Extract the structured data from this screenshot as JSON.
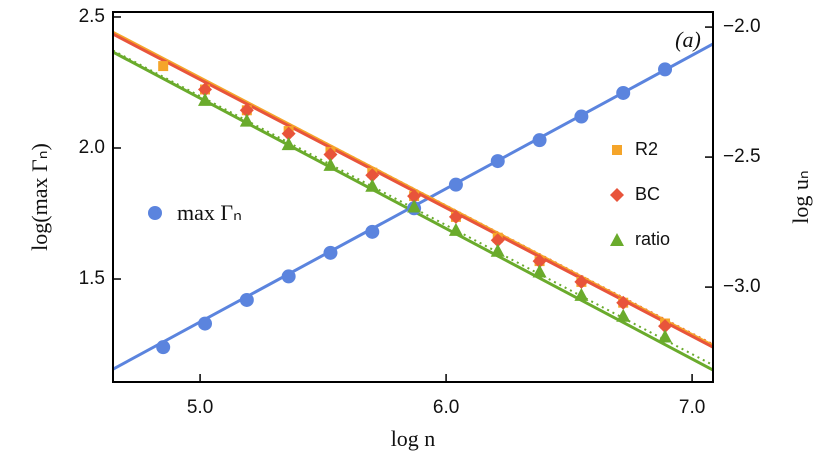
{
  "chart_data": {
    "type": "scatter",
    "annotation": "(a)",
    "xlabel": "log n",
    "ylabel": "log(max Γₙ)",
    "y2label": "log uₙ",
    "xlim": [
      4.646,
      7.085
    ],
    "ylim": [
      1.107,
      2.519
    ],
    "y2lim": [
      -3.365,
      -1.942
    ],
    "xticks": [
      {
        "value": 5,
        "label": "5.0"
      },
      {
        "value": 6,
        "label": "6.0"
      },
      {
        "value": 7,
        "label": "7.0"
      }
    ],
    "yticks": [
      1.5,
      {
        "value": 2,
        "label": "2.0"
      },
      2.5
    ],
    "y2ticks": [
      {
        "value": -3,
        "label": "−3.0"
      },
      {
        "value": -2.5,
        "label": "−2.5"
      },
      {
        "value": -2,
        "label": "−2.0"
      }
    ],
    "series": [
      {
        "name": "max Γₙ",
        "color": "#5b84de",
        "marker": "circle",
        "axis": "y",
        "x": [
          4.85,
          5.02,
          5.19,
          5.36,
          5.53,
          5.7,
          5.87,
          6.04,
          6.21,
          6.38,
          6.55,
          6.72,
          6.89
        ],
        "values": [
          1.24,
          1.33,
          1.42,
          1.51,
          1.6,
          1.68,
          1.77,
          1.86,
          1.95,
          2.03,
          2.12,
          2.21,
          2.3
        ]
      },
      {
        "name": "R2",
        "color": "#f5a52a",
        "marker": "square",
        "axis": "y2",
        "x": [
          4.85,
          5.02,
          5.19,
          5.36,
          5.53,
          5.7,
          5.87,
          6.04,
          6.21,
          6.38,
          6.55,
          6.72,
          6.89
        ],
        "values": [
          -2.15,
          -2.24,
          -2.32,
          -2.4,
          -2.48,
          -2.56,
          -2.65,
          -2.73,
          -2.81,
          -2.9,
          -2.98,
          -3.06,
          -3.14
        ]
      },
      {
        "name": "BC",
        "color": "#e8543b",
        "marker": "diamond",
        "axis": "y2",
        "x": [
          5.02,
          5.19,
          5.36,
          5.53,
          5.7,
          5.87,
          6.04,
          6.21,
          6.38,
          6.55,
          6.72,
          6.89
        ],
        "values": [
          -2.24,
          -2.32,
          -2.41,
          -2.49,
          -2.57,
          -2.65,
          -2.73,
          -2.82,
          -2.9,
          -2.98,
          -3.06,
          -3.15
        ]
      },
      {
        "name": "ratio",
        "color": "#6aab2c",
        "marker": "triangle",
        "axis": "y2",
        "x": [
          5.02,
          5.19,
          5.36,
          5.53,
          5.7,
          5.87,
          6.04,
          6.21,
          6.38,
          6.55,
          6.72,
          6.89
        ],
        "values": [
          -2.28,
          -2.36,
          -2.45,
          -2.53,
          -2.61,
          -2.69,
          -2.78,
          -2.86,
          -2.94,
          -3.03,
          -3.11,
          -3.19
        ]
      }
    ],
    "fits": [
      {
        "color": "#6aab2c",
        "dashed": true,
        "axis": "y2",
        "x": [
          4.646,
          7.085
        ],
        "values": [
          -2.09,
          -3.3
        ]
      },
      {
        "color": "#e8543b",
        "dashed": true,
        "axis": "y2",
        "x": [
          4.646,
          7.085
        ],
        "values": [
          -2.02,
          -3.22
        ]
      },
      {
        "color": "#5b84de",
        "dashed": false,
        "axis": "y",
        "x": [
          4.646,
          7.085
        ],
        "values": [
          1.156,
          2.397
        ]
      },
      {
        "color": "#f5a52a",
        "dashed": false,
        "axis": "y2",
        "x": [
          4.646,
          7.085
        ],
        "values": [
          -2.02,
          -3.225
        ]
      },
      {
        "color": "#e8543b",
        "dashed": false,
        "axis": "y2",
        "x": [
          4.646,
          7.085
        ],
        "values": [
          -2.027,
          -3.231
        ]
      },
      {
        "color": "#6aab2c",
        "dashed": false,
        "axis": "y2",
        "x": [
          4.646,
          7.085
        ],
        "values": [
          -2.096,
          -3.319
        ]
      }
    ]
  }
}
